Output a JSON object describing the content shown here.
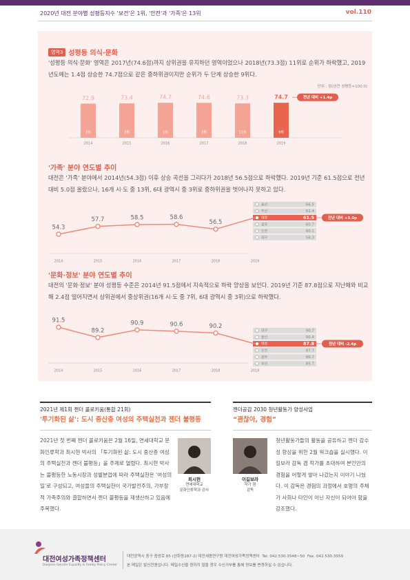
{
  "header": {
    "title": "2020년 대전 분야별 성평등지수 '보건'은 1위, '안전'과 '가족'은 13위",
    "volume": "vol.110"
  },
  "section1": {
    "badge": "영역3",
    "title": "성평등 의식·문화",
    "text": "'성평등 의식·문화' 영역은 2017년(74.6점)까지 상위권을 유지하던 영역이었으나 2018년(73.3점) 11위로 순위가 하락했고, 2019년도에는 1.4점 상승한 74.7점으로 같은 중하위권이지만 순위가 두 단계 상승한 9위다.",
    "unit": "단위 : 점(완전 성평등=100.0)",
    "chart": {
      "type": "bar",
      "categories": [
        "2014",
        "2015",
        "2016",
        "2017",
        "2018",
        "2019"
      ],
      "values": [
        72.9,
        73.4,
        74.7,
        74.6,
        73.3,
        74.7
      ],
      "ranks": [
        "3위",
        "3위",
        "1위",
        "3위",
        "11위",
        "9위"
      ],
      "color": "#f4a494",
      "highlight_color": "#e8654f",
      "highlight_index": 5,
      "callout": "전년 대비 +1.4p"
    }
  },
  "section2": {
    "title": "'가족' 분야 연도별 추이",
    "text": "대전은 '가족' 분야에서 2014년(54.3점) 이후 상승 곡선을 그리다가 2018년 56.5점으로 하락했다. 2019년 기준 61.5점으로 전년 대비 5.0점 올랐으나, 16개 시·도 중 13위, 6대 광역시 중 3위로 중하위권을 벗어나지 못하고 있다.",
    "chart": {
      "type": "line",
      "categories": [
        "2014",
        "2015",
        "2016",
        "2017",
        "2018",
        "2019"
      ],
      "values": [
        54.3,
        57.7,
        58.5,
        58.6,
        56.5,
        61.5
      ],
      "color": "#f08a78",
      "comparison": {
        "names": [
          "울산",
          "부산",
          "대전",
          "광주",
          "인천",
          "대구"
        ],
        "values": [
          66.5,
          62.4,
          61.5,
          60.7,
          60.1,
          58.3
        ],
        "highlight_index": 2
      },
      "callout": "전년 대비 +5.0p"
    }
  },
  "section3": {
    "title": "'문화·정보' 분야 연도별 추이",
    "text": "대전의 '문화·정보' 분야 성평등 수준은 2014년 91.5점에서 지속적으로 하락 양상을 보인다. 2019년 기준 87.8점으로 지난해와 비교해 2.4점 떨어지면서 상위권에서 중상위권(16개 시·도 중 7위, 6대 광역시 중 3위)으로 하락했다.",
    "chart": {
      "type": "line",
      "categories": [
        "2014",
        "2015",
        "2016",
        "2017",
        "2018",
        "2019"
      ],
      "values": [
        91.5,
        89.2,
        90.9,
        90.6,
        90.2,
        87.8
      ],
      "color": "#f08a78",
      "comparison": {
        "names": [
          "대구",
          "울산",
          "대전",
          "인천",
          "광주",
          "부산"
        ],
        "values": [
          90.7,
          90.4,
          87.8,
          87.7,
          86.7,
          85.7
        ],
        "highlight_index": 2
      },
      "callout": "전년 대비 -2.4p"
    }
  },
  "colloquium": {
    "kicker": "2021년 제1회 젠더 콜로키움(통합 21회)",
    "title": "'투기화된 삶': 도시 중산층 여성의 주택실천과 젠더 불평등",
    "body": "2021년 첫 번째 젠더 콜로키움은 2월 16일, 연세대학교 문화인류학과 최시현 박사의 「투기화된 삶: 도시 중산층 여성의 주택실천과 젠더 불평등」을 주제로 열렸다. 최시현 박사는 불평등한 노동시장과 성별분업에 따라 주택실천은 '여성의 일'로 구성되고, 여성들의 주택실천이 국가발전주의, 가부장적 가족주의와 결합하면서 젠더 불평등을 재생산하고 있음에 주목했다.",
    "caption": [
      "최시현",
      "연세대학교",
      "문화인류학과 강사"
    ]
  },
  "youth": {
    "kicker": "젠더공감 2030 청년활동가 양성사업",
    "title": "“괜찮아, 경험”",
    "body": "청년활동가들의 활동을 공유하고 젠더 감수성 향상을 위한 2월 워크숍을 실시했다. 이길보라 감독 겸 작가를 초대하여 본인만의 경험을 어떻게 쌓아 나갔는지 이야기 나눴다. 이 감독은 경험의 과정에서 호명의 주체가 사회나 타인이 아닌 자신이 되어야 함을 강조했다.",
    "caption": [
      "이길보라",
      "작가 겸",
      "감독"
    ]
  },
  "footer": {
    "org": "대전여성가족정책센터",
    "org_en": "Daejeon Gender Equality & Family Policy Center",
    "address": "대전광역시 중구 중앙로 85 (선화동287-2) 대전세종연구원 대전여성가족정책센터  Tel. 042.530.3548~50  Fax. 042.530.3559",
    "notice": "본 메일은 발신전용입니다. 메일수신을 원하지 않을 경우 수신거부를 통해 정보를 변경하실 수 있습니다."
  }
}
